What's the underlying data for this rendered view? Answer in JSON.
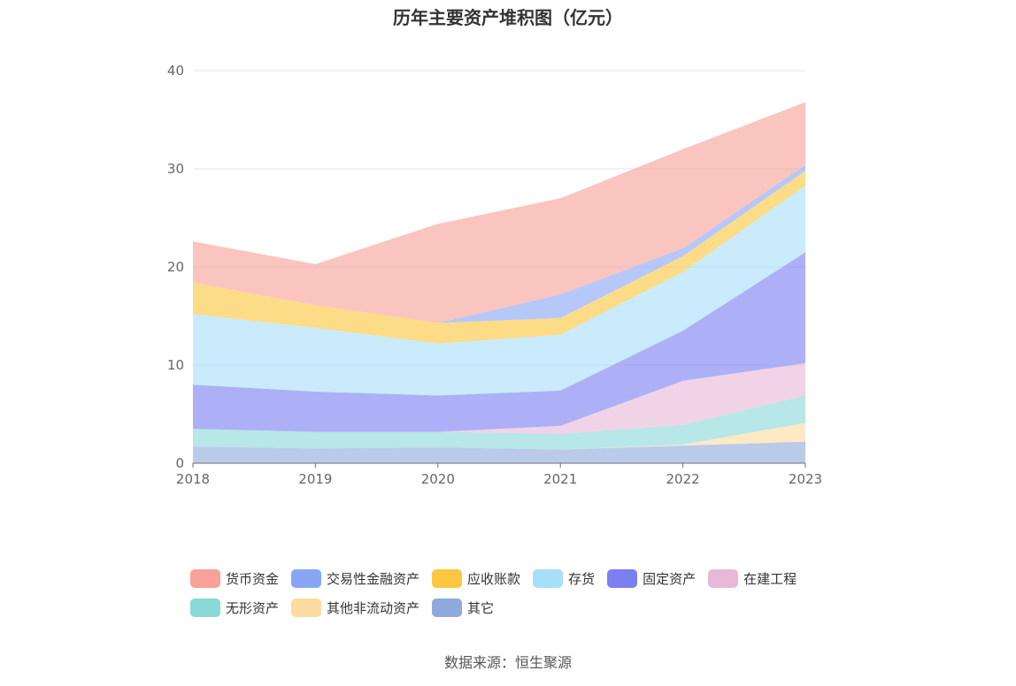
{
  "title": "历年主要资产堆积图（亿元）",
  "source": "数据来源：恒生聚源",
  "chart_data": {
    "type": "area",
    "stacked": true,
    "title": "历年主要资产堆积图（亿元）",
    "x": [
      "2018",
      "2019",
      "2020",
      "2021",
      "2022",
      "2023"
    ],
    "ylim": [
      0,
      40
    ],
    "yticks": [
      0,
      10,
      20,
      30,
      40
    ],
    "grid": true,
    "legend_position": "bottom",
    "series": [
      {
        "name": "其它",
        "color": "#8fa9dc",
        "values": [
          1.7,
          1.5,
          1.6,
          1.4,
          1.8,
          2.2
        ]
      },
      {
        "name": "其他非流动资产",
        "color": "#fddca2",
        "values": [
          0.0,
          0.0,
          0.0,
          0.0,
          0.1,
          1.9
        ]
      },
      {
        "name": "无形资产",
        "color": "#8ad8d8",
        "values": [
          1.8,
          1.7,
          1.6,
          1.6,
          2.0,
          2.8
        ]
      },
      {
        "name": "在建工程",
        "color": "#e8b8d8",
        "values": [
          0.0,
          0.0,
          0.0,
          0.8,
          4.5,
          3.3
        ]
      },
      {
        "name": "固定资产",
        "color": "#7b7ff0",
        "values": [
          4.5,
          4.1,
          3.7,
          3.6,
          5.1,
          11.3
        ]
      },
      {
        "name": "存货",
        "color": "#a8dff8",
        "values": [
          7.2,
          6.5,
          5.3,
          5.7,
          6.0,
          6.8
        ]
      },
      {
        "name": "应收账款",
        "color": "#fcc63f",
        "values": [
          3.2,
          2.3,
          2.1,
          1.7,
          1.6,
          1.5
        ]
      },
      {
        "name": "交易性金融资产",
        "color": "#89a6f6",
        "values": [
          0.0,
          0.0,
          0.0,
          2.4,
          0.8,
          0.6
        ]
      },
      {
        "name": "货币资金",
        "color": "#f8a198",
        "values": [
          4.2,
          4.2,
          10.1,
          9.8,
          10.1,
          6.4
        ]
      }
    ]
  },
  "legend": [
    [
      "货币资金",
      "交易性金融资产",
      "应收账款",
      "存货",
      "固定资产",
      "在建工程"
    ],
    [
      "无形资产",
      "其他非流动资产",
      "其它"
    ]
  ]
}
